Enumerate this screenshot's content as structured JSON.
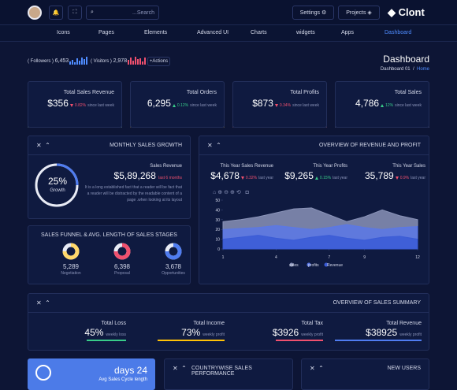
{
  "header": {
    "search": "...Search",
    "settings": "Settings",
    "projects": "Projects",
    "logo": "Clont"
  },
  "nav": [
    "Icons",
    "Pages",
    "Elements",
    "Advanced UI",
    "Charts",
    "widgets",
    "Apps",
    "Dashboard"
  ],
  "followers": {
    "label": "( Followers )",
    "value": "6,453"
  },
  "visitors": {
    "label": "( Visitors )",
    "value": "2,978"
  },
  "actions": "+Actions",
  "page_title": "Dashboard",
  "breadcrumb": [
    "Dashboard 01",
    "/",
    "Home"
  ],
  "stats": [
    {
      "title": "Total Sales Revenue",
      "value": "$356",
      "change": "0.82%",
      "note": "since last week",
      "direction": "down"
    },
    {
      "title": "Total Orders",
      "value": "6,295",
      "change": "0.12%",
      "note": "since last week",
      "direction": "up"
    },
    {
      "title": "Total Profits",
      "value": "$873",
      "change": "0.34%",
      "note": "since last week",
      "direction": "down"
    },
    {
      "title": "Total Sales",
      "value": "4,786",
      "change": "12%",
      "note": "since last week",
      "direction": "up"
    }
  ],
  "monthly": {
    "title": "MONTHLY SALES GROWTH",
    "gauge": "25%",
    "gauge_label": "Growth",
    "label": "Sales Revenue",
    "value": "$5,89,268",
    "period": "last 6 months",
    "text": "It is a long established fact that a reader will be fact that a reader will be distracted by the readable content of a page .when looking at its layout"
  },
  "funnel": {
    "title": "SALES FUNNEL & AVG. LENGTH OF SALES STAGES",
    "items": [
      {
        "value": "5,289",
        "label": "Negotiation"
      },
      {
        "value": "6,398",
        "label": "Proposal"
      },
      {
        "value": "3,678",
        "label": "Opportunities"
      }
    ]
  },
  "overview": {
    "title": "OVERVIEW OF REVENUE AND PROFIT",
    "kpis": [
      {
        "title": "This Year Sales Revenue",
        "value": "$4,678",
        "change": "0.32%",
        "note": "last year",
        "direction": "down"
      },
      {
        "title": "This Year Profits",
        "value": "$9,265",
        "change": "0.15%",
        "note": "last year",
        "direction": "up"
      },
      {
        "title": "This Year Sales",
        "value": "35,789",
        "change": "0.9%",
        "note": "last year",
        "direction": "down"
      }
    ]
  },
  "chart": {
    "type": "area",
    "x": [
      1,
      2,
      3,
      4,
      5,
      6,
      7,
      8,
      9,
      10,
      11,
      12
    ],
    "xlim": [
      1,
      12
    ],
    "xticks": [
      1,
      4,
      7,
      9,
      12
    ],
    "ylim": [
      0,
      50
    ],
    "yticks": [
      0,
      10,
      20,
      30,
      40,
      50
    ],
    "series": [
      {
        "name": "sales",
        "color": "#8a93b8",
        "values": [
          28,
          30,
          33,
          37,
          41,
          42,
          35,
          28,
          33,
          40,
          34,
          30
        ]
      },
      {
        "name": "profits",
        "color": "#5b78e6",
        "values": [
          20,
          21,
          22,
          24,
          22,
          20,
          22,
          25,
          22,
          20,
          22,
          23
        ]
      },
      {
        "name": "Revenue",
        "color": "#3a5bd6",
        "values": [
          10,
          12,
          14,
          11,
          9,
          12,
          14,
          11,
          9,
          12,
          13,
          10
        ]
      }
    ]
  },
  "summary": {
    "title": "OVERVIEW OF SALES SUMMARY",
    "items": [
      {
        "title": "Total Loss",
        "value": "45%",
        "note": "weekly loss"
      },
      {
        "title": "Total Income",
        "value": "73%",
        "note": "weekly profit"
      },
      {
        "title": "Total Tax",
        "value": "$3926",
        "note": "weekly profit"
      },
      {
        "title": "Total Revenue",
        "value": "$38925",
        "note": "weekly profit"
      }
    ]
  },
  "bottom": {
    "days": "days 24",
    "cycle": "Avg Sales Cycle length",
    "country": "COUNTRYWISE SALES PERFORMANCE",
    "users": "NEW USERS"
  }
}
